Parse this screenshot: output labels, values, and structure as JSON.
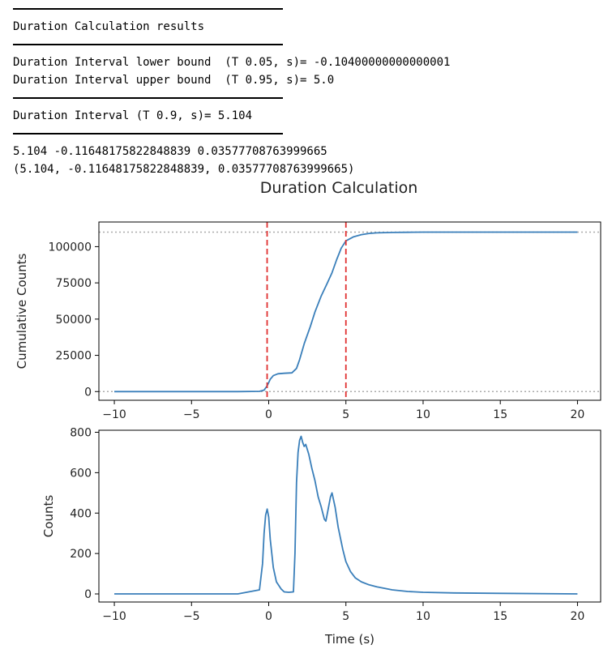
{
  "console": {
    "lines": [
      {
        "kind": "rule"
      },
      {
        "kind": "text",
        "text": "Duration Calculation results"
      },
      {
        "kind": "rule"
      },
      {
        "kind": "text",
        "text": "Duration Interval lower bound  (T 0.05, s)= -0.10400000000000001"
      },
      {
        "kind": "text",
        "text": "Duration Interval upper bound  (T 0.95, s)= 5.0"
      },
      {
        "kind": "rule"
      },
      {
        "kind": "text",
        "text": "Duration Interval (T 0.9, s)= 5.104"
      },
      {
        "kind": "rule"
      },
      {
        "kind": "text",
        "text": "5.104 -0.11648175822848839 0.03577708763999665"
      },
      {
        "kind": "text",
        "text": "(5.104, -0.11648175822848839, 0.03577708763999665)"
      }
    ]
  },
  "chart_data": [
    {
      "type": "line",
      "suptitle": "Duration Calculation",
      "ylabel": "Cumulative Counts",
      "xlim": [
        -11,
        21.5
      ],
      "ylim": [
        -6000,
        117000
      ],
      "xticks": [
        -10,
        -5,
        0,
        5,
        10,
        15,
        20
      ],
      "xtick_labels": [
        "−10",
        "−5",
        "0",
        "5",
        "10",
        "15",
        "20"
      ],
      "yticks": [
        0,
        25000,
        50000,
        75000,
        100000
      ],
      "ytick_labels": [
        "0",
        "25000",
        "50000",
        "75000",
        "100000"
      ],
      "hlines": [
        0,
        110000
      ],
      "vlines": [
        -0.104,
        5.0
      ],
      "line_color": "#3a7fba",
      "vline_color": "#e03030",
      "hline_color": "#aaaaaa",
      "series": [
        {
          "x": [
            -10,
            -2,
            -0.6,
            -0.3,
            -0.1,
            0.1,
            0.3,
            0.6,
            1.0,
            1.5,
            1.8,
            2.0,
            2.3,
            2.7,
            3.0,
            3.4,
            3.8,
            4.1,
            4.4,
            4.7,
            5.0,
            5.5,
            6.0,
            6.5,
            7.0,
            7.5,
            8.0,
            9.0,
            10.0,
            12.0,
            15.0,
            20.0
          ],
          "y": [
            0,
            0,
            150,
            1000,
            4000,
            8500,
            11000,
            12300,
            12600,
            12900,
            16000,
            22000,
            33000,
            45000,
            55000,
            66000,
            75000,
            82000,
            91000,
            99000,
            104000,
            106800,
            108300,
            109100,
            109500,
            109700,
            109800,
            109900,
            110000,
            110000,
            110000,
            110000
          ]
        }
      ]
    },
    {
      "type": "line",
      "xlabel": "Time (s)",
      "ylabel": "Counts",
      "xlim": [
        -11,
        21.5
      ],
      "ylim": [
        -40,
        810
      ],
      "xticks": [
        -10,
        -5,
        0,
        5,
        10,
        15,
        20
      ],
      "xtick_labels": [
        "−10",
        "−5",
        "0",
        "5",
        "10",
        "15",
        "20"
      ],
      "yticks": [
        0,
        200,
        400,
        600,
        800
      ],
      "ytick_labels": [
        "0",
        "200",
        "400",
        "600",
        "800"
      ],
      "line_color": "#3a7fba",
      "series": [
        {
          "x": [
            -10,
            -2,
            -0.6,
            -0.4,
            -0.3,
            -0.2,
            -0.1,
            0.0,
            0.1,
            0.3,
            0.5,
            0.8,
            1.0,
            1.3,
            1.6,
            1.7,
            1.8,
            1.9,
            2.0,
            2.1,
            2.2,
            2.3,
            2.4,
            2.6,
            2.8,
            3.0,
            3.2,
            3.4,
            3.6,
            3.7,
            3.8,
            4.0,
            4.1,
            4.3,
            4.5,
            4.8,
            5.0,
            5.3,
            5.6,
            6.0,
            6.5,
            7.0,
            8.0,
            9.0,
            10.0,
            12.0,
            15.0,
            20.0
          ],
          "y": [
            0,
            0,
            20,
            150,
            300,
            390,
            420,
            380,
            270,
            130,
            60,
            25,
            10,
            8,
            10,
            200,
            550,
            700,
            760,
            780,
            750,
            730,
            740,
            690,
            620,
            560,
            480,
            430,
            370,
            360,
            400,
            480,
            500,
            430,
            330,
            220,
            160,
            110,
            80,
            60,
            45,
            35,
            20,
            12,
            8,
            5,
            3,
            0
          ]
        }
      ]
    }
  ]
}
